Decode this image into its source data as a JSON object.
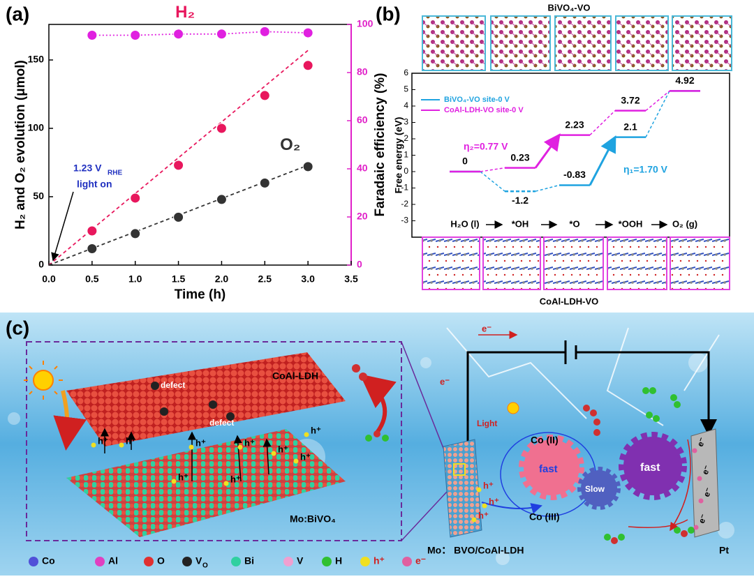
{
  "panels": {
    "a": "(a)",
    "b": "(b)",
    "c": "(c)"
  },
  "chart_data": [
    {
      "type": "scatter",
      "xlabel": "Time (h)",
      "ylabel": "H₂ and O₂ evolution (μmol)",
      "y2label": "Faradaic efficiency (%)",
      "xlim": [
        0,
        3.5
      ],
      "xticks": [
        {
          "value": 0,
          "label": "0.0"
        },
        0.5,
        {
          "value": 1,
          "label": "1.0"
        },
        1.5,
        {
          "value": 2,
          "label": "2.0"
        },
        2.5,
        {
          "value": 3,
          "label": "3.0"
        },
        3.5
      ],
      "ylim": [
        0,
        176
      ],
      "yticks": [
        0,
        50,
        100,
        150
      ],
      "y2lim": [
        0,
        100
      ],
      "y2ticks": [
        0,
        20,
        40,
        60,
        80,
        100
      ],
      "y2color": "#e020c8",
      "x": [
        0.5,
        1.0,
        1.5,
        2.0,
        2.5,
        3.0
      ],
      "series": [
        {
          "name": "H₂",
          "color": "#e8175d",
          "values": [
            25,
            49,
            73,
            100,
            124,
            146
          ]
        },
        {
          "name": "O₂",
          "color": "#333333",
          "values": [
            12,
            23,
            35,
            48,
            60,
            72
          ]
        },
        {
          "color": "#e020e0",
          "axis": "y2",
          "values": [
            95.5,
            95.5,
            96,
            96,
            97,
            96.5
          ]
        }
      ],
      "fits": [
        {
          "color": "#e8175d",
          "x": [
            0,
            3.0
          ],
          "values": [
            0,
            157
          ]
        },
        {
          "color": "#333333",
          "x": [
            0,
            3.0
          ],
          "values": [
            0,
            73
          ]
        }
      ],
      "annotation": {
        "text": "1.23 V",
        "sub": "RHE",
        "line2": "light on"
      }
    },
    {
      "type": "energy",
      "title": "BiVO₄-VO",
      "bottom_title": "CoAl-LDH-VO",
      "ylabel": "Free energy (eV)",
      "categories": [
        "H₂O (l)",
        "*OH",
        "*O",
        "*OOH",
        "O₂ (g)"
      ],
      "ylim": [
        -4,
        6
      ],
      "yticks": [
        -3,
        -2,
        -1,
        0,
        1,
        2,
        3,
        4,
        5,
        6
      ],
      "legend": "upper left",
      "series": [
        {
          "name": "BiVO₄-VO site-0 V",
          "color": "#1fa3e0",
          "values": [
            0,
            -1.2,
            -0.83,
            2.1,
            4.92
          ]
        },
        {
          "name": "CoAl-LDH-VO site-0 V",
          "color": "#e020e0",
          "values": [
            0,
            0.23,
            2.23,
            3.72,
            4.92
          ]
        }
      ],
      "annotations": [
        "η₁=1.70 V",
        "η₂=0.77 V"
      ]
    }
  ],
  "schematic": {
    "labels": {
      "ldh": "CoAl-LDH",
      "defect1": "defect",
      "defect2": "defect",
      "bivo4": "Mo:BiVO₄",
      "e1": "e⁻",
      "e2": "e⁻",
      "light": "Light",
      "co2": "Co (II)",
      "co3": "Co (III)",
      "fast1": "fast",
      "fast2": "fast",
      "slow": "Slow",
      "pt": "Pt",
      "device": "Mo： BVO/CoAl-LDH"
    },
    "holes": [
      "h⁺",
      "h⁺",
      "h⁺",
      "h⁺",
      "h⁺",
      "h⁺",
      "h⁺",
      "h⁺",
      "h⁺",
      "h⁺",
      "h⁺",
      "h⁺"
    ],
    "electrons": [
      "e⁻",
      "e⁻",
      "e⁻",
      "e⁻"
    ],
    "legend": [
      {
        "label": "Co",
        "color": "#5050d8"
      },
      {
        "label": "Al",
        "color": "#e040c0"
      },
      {
        "label": "O",
        "color": "#e03030"
      },
      {
        "label": "V",
        "sub": "O",
        "color": "#222222"
      },
      {
        "label": "Bi",
        "color": "#30d0a0"
      },
      {
        "label": "V",
        "color": "#f0a0d0"
      },
      {
        "label": "H",
        "color": "#30c030"
      },
      {
        "label": "h⁺",
        "color": "#f0e020"
      },
      {
        "label": "e⁻",
        "color": "#e060a0"
      }
    ]
  }
}
